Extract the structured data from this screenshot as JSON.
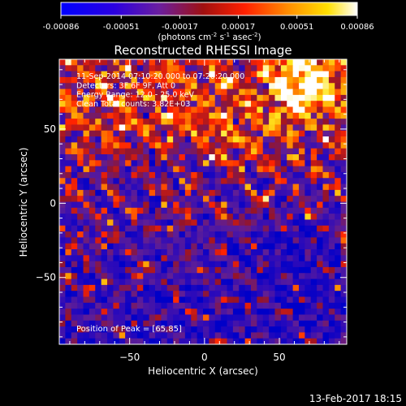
{
  "chart_data": {
    "type": "heatmap",
    "title": "Reconstructed RHESSI Image",
    "xlabel": "Heliocentric X (arcsec)",
    "ylabel": "Heliocentric Y (arcsec)",
    "xlim": [
      -97,
      95
    ],
    "ylim": [
      -95,
      97
    ],
    "xticks": [
      -50,
      0,
      50
    ],
    "yticks": [
      50,
      0,
      -50
    ],
    "colorbar": {
      "ticks": [
        -0.00086,
        -0.00051,
        -0.00017,
        0.00017,
        0.00051,
        0.00086
      ],
      "tick_labels": [
        "-0.00086",
        "-0.00051",
        "-0.00017",
        "0.00017",
        "0.00051",
        "0.00086"
      ],
      "unit_label": "(photons cm",
      "unit_exp1": "-2",
      "unit_mid": " s",
      "unit_exp2": "-1",
      "unit_end": " asec",
      "unit_exp3": "-2",
      "unit_close": ")"
    },
    "annotations": [
      "11-Sep-2014 07:10:20.000 to 07:20:20.000",
      "Detectors: 3F 6F 9F, Att 0",
      "Energy Range: 12.0 - 25.0 keV",
      "Clean    Total counts: 3.82E+03"
    ],
    "peak_label": "Position of Peak = [65,85]",
    "peak": [
      65,
      85
    ],
    "grid_n": 48,
    "grid": false
  },
  "footer": {
    "timestamp": "13-Feb-2017 18:15"
  }
}
